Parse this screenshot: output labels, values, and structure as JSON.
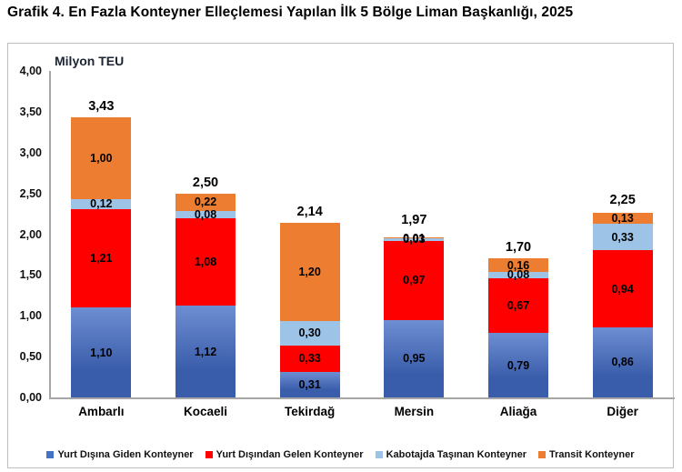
{
  "title": "Grafik 4. En Fazla Konteyner Elleçlemesi Yapılan İlk 5 Bölge Liman Başkanlığı, 2025",
  "chart_data": {
    "type": "bar",
    "stacked": true,
    "title": "Grafik 4. En Fazla Konteyner Elleçlemesi Yapılan İlk 5 Bölge Liman Başkanlığı, 2025",
    "ylabel": "Milyon TEU",
    "xlabel": "",
    "ylim": [
      0,
      4
    ],
    "yticks": [
      "0,00",
      "0,50",
      "1,00",
      "1,50",
      "2,00",
      "2,50",
      "3,00",
      "3,50",
      "4,00"
    ],
    "grid": false,
    "legend_position": "bottom",
    "categories": [
      "Ambarlı",
      "Kocaeli",
      "Tekirdağ",
      "Mersin",
      "Aliağa",
      "Diğer"
    ],
    "series": [
      {
        "name": "Yurt Dışına Giden Konteyner",
        "color": "#4472C4",
        "gradient_top": "#6E8ED2",
        "gradient_bottom": "#3A5DAB",
        "values": [
          1.1,
          1.12,
          0.31,
          0.95,
          0.79,
          0.86
        ],
        "labels": [
          "1,10",
          "1,12",
          "0,31",
          "0,95",
          "0,79",
          "0,86"
        ]
      },
      {
        "name": "Yurt Dışından Gelen Konteyner",
        "color": "#FE0000",
        "values": [
          1.21,
          1.08,
          0.33,
          0.97,
          0.67,
          0.94
        ],
        "labels": [
          "1,21",
          "1,08",
          "0,33",
          "0,97",
          "0,67",
          "0,94"
        ]
      },
      {
        "name": "Kabotajda Taşınan Konteyner",
        "color": "#9DC3E6",
        "values": [
          0.12,
          0.08,
          0.3,
          0.03,
          0.08,
          0.33
        ],
        "labels": [
          "0,12",
          "0,08",
          "0,30",
          "0,03",
          "0,08",
          "0,33"
        ]
      },
      {
        "name": "Transit Konteyner",
        "color": "#ED7D31",
        "values": [
          1.0,
          0.22,
          1.2,
          0.01,
          0.16,
          0.13
        ],
        "labels": [
          "1,00",
          "0,22",
          "1,20",
          "0,01",
          "0,16",
          "0,13"
        ]
      }
    ],
    "totals": [
      "3,43",
      "2,50",
      "2,14",
      "1,97",
      "1,70",
      "2,25"
    ],
    "colors": {
      "axis_line": "#a6a6a6",
      "chart_border": "#bfbfbf",
      "label_text": "#000000"
    }
  }
}
